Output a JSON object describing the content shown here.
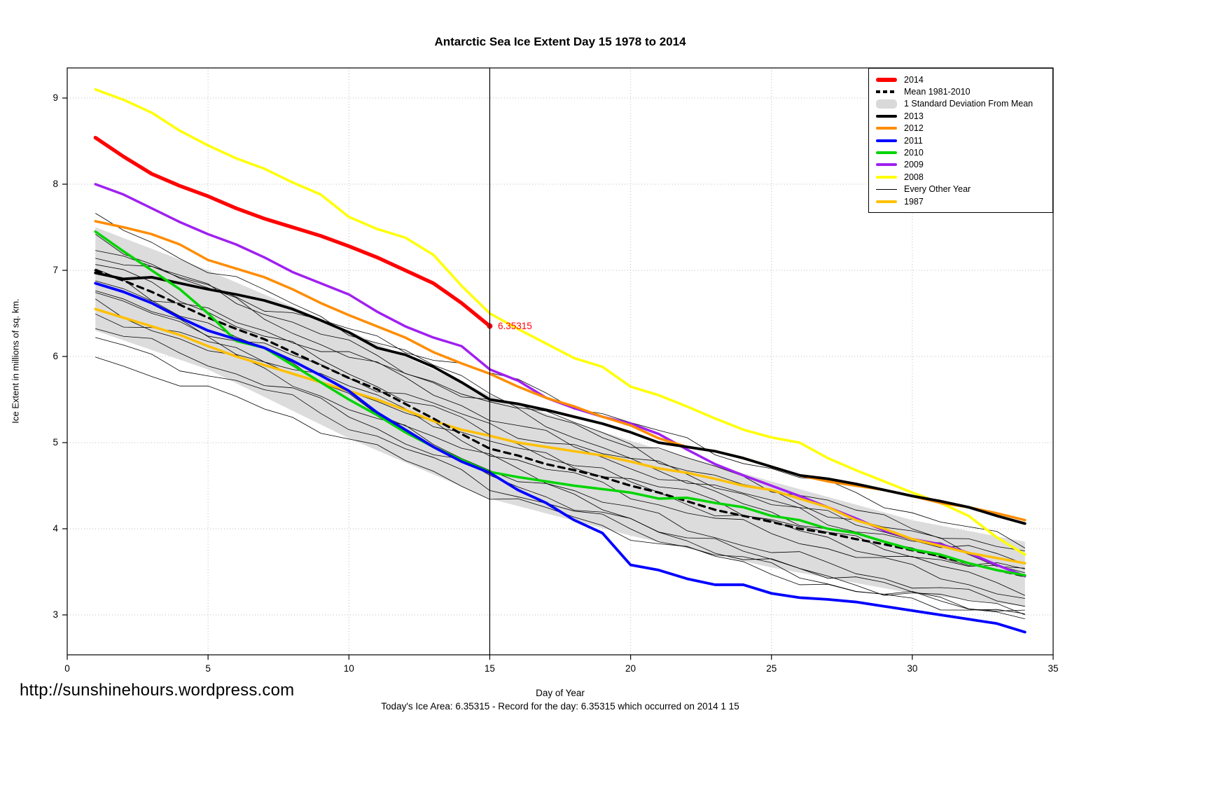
{
  "page": {
    "title": "Antarctic Sea Ice Extent Day 15 1978 to 2014",
    "y_axis_label": "Ice Extent in millions of sq. km.",
    "x_axis_label": "Day of Year",
    "url_text": "http://sunshinehours.wordpress.com",
    "footer_note": "Today's Ice Area: 6.35315  - Record for the day: 6.35315 which occurred on 2014 1 15",
    "annotation": "6.35315"
  },
  "legend": {
    "items": [
      {
        "label": "2014",
        "color": "#FF0000",
        "style": "thick"
      },
      {
        "label": "Mean 1981-2010",
        "color": "#000000",
        "style": "dashed"
      },
      {
        "label": "1 Standard Deviation From Mean",
        "color": "#D9D9D9",
        "style": "band"
      },
      {
        "label": "2013",
        "color": "#000000",
        "style": "line"
      },
      {
        "label": "2012",
        "color": "#FF8C00",
        "style": "line"
      },
      {
        "label": "2011",
        "color": "#0000FF",
        "style": "line"
      },
      {
        "label": "2010",
        "color": "#00D400",
        "style": "line"
      },
      {
        "label": "2009",
        "color": "#A020F0",
        "style": "line"
      },
      {
        "label": "2008",
        "color": "#FFFF00",
        "style": "line"
      },
      {
        "label": "Every Other Year",
        "color": "#000000",
        "style": "thin"
      },
      {
        "label": "1987",
        "color": "#FFC000",
        "style": "line"
      }
    ]
  },
  "chart_data": {
    "type": "line",
    "title": "Antarctic Sea Ice Extent Day 15 1978 to 2014",
    "xlabel": "Day of Year",
    "ylabel": "Ice Extent in millions of sq. km.",
    "xlim": [
      0,
      35
    ],
    "ylim": [
      2.6,
      9.4
    ],
    "x_ticks": [
      0,
      5,
      10,
      15,
      20,
      25,
      30,
      35
    ],
    "y_ticks": [
      3,
      4,
      5,
      6,
      7,
      8,
      9
    ],
    "grid": true,
    "legend_position": "top-right",
    "vline_x": 15,
    "annotation": {
      "x": 15,
      "y": 6.35315,
      "text": "6.35315",
      "color": "#FF0000"
    },
    "band": {
      "name": "1 Standard Deviation From Mean",
      "color": "#DCDCDC",
      "x": [
        1,
        5,
        10,
        15,
        20,
        25,
        30,
        34
      ],
      "upper": [
        7.5,
        7.0,
        6.3,
        5.55,
        5.02,
        4.55,
        4.1,
        3.85
      ],
      "lower": [
        6.3,
        5.85,
        5.05,
        4.35,
        3.92,
        3.55,
        3.25,
        3.1
      ]
    },
    "series": [
      {
        "name": "2008",
        "color": "#FFFF00",
        "width": 3.5,
        "dash": null,
        "start_day": 1,
        "values": [
          9.1,
          8.98,
          8.83,
          8.62,
          8.45,
          8.3,
          8.18,
          8.02,
          7.88,
          7.62,
          7.48,
          7.38,
          7.18,
          6.82,
          6.5,
          6.32,
          6.15,
          5.98,
          5.88,
          5.65,
          5.55,
          5.42,
          5.28,
          5.15,
          5.06,
          5.0,
          4.82,
          4.68,
          4.55,
          4.42,
          4.3,
          4.15,
          3.9,
          3.7
        ]
      },
      {
        "name": "2009",
        "color": "#A020F0",
        "width": 3.5,
        "dash": null,
        "start_day": 1,
        "values": [
          8.0,
          7.88,
          7.72,
          7.56,
          7.42,
          7.3,
          7.15,
          6.98,
          6.85,
          6.72,
          6.52,
          6.35,
          6.22,
          6.12,
          5.85,
          5.72,
          5.52,
          5.4,
          5.3,
          5.22,
          5.1,
          4.92,
          4.75,
          4.62,
          4.5,
          4.38,
          4.25,
          4.12,
          3.98,
          3.88,
          3.82,
          3.72,
          3.58,
          3.45
        ]
      },
      {
        "name": "2012",
        "color": "#FF8C00",
        "width": 3.5,
        "dash": null,
        "start_day": 1,
        "values": [
          7.57,
          7.5,
          7.42,
          7.3,
          7.12,
          7.02,
          6.92,
          6.78,
          6.62,
          6.48,
          6.35,
          6.22,
          6.05,
          5.92,
          5.8,
          5.65,
          5.52,
          5.42,
          5.3,
          5.2,
          5.05,
          4.95,
          4.9,
          4.82,
          4.72,
          4.62,
          4.55,
          4.5,
          4.45,
          4.38,
          4.3,
          4.25,
          4.18,
          4.1
        ]
      },
      {
        "name": "1987",
        "color": "#FFC000",
        "width": 3.5,
        "dash": null,
        "start_day": 1,
        "values": [
          6.55,
          6.45,
          6.35,
          6.25,
          6.12,
          6.0,
          5.9,
          5.8,
          5.7,
          5.6,
          5.5,
          5.38,
          5.25,
          5.15,
          5.08,
          5.0,
          4.95,
          4.9,
          4.85,
          4.78,
          4.7,
          4.65,
          4.58,
          4.5,
          4.45,
          4.35,
          4.25,
          4.1,
          4.0,
          3.88,
          3.8,
          3.72,
          3.66,
          3.6
        ]
      },
      {
        "name": "Mean 1981-2010",
        "color": "#000000",
        "width": 3.2,
        "dash": "9 7",
        "start_day": 1,
        "values": [
          7.0,
          6.88,
          6.75,
          6.6,
          6.45,
          6.32,
          6.2,
          6.05,
          5.9,
          5.75,
          5.62,
          5.45,
          5.28,
          5.1,
          4.93,
          4.85,
          4.75,
          4.68,
          4.6,
          4.5,
          4.42,
          4.32,
          4.22,
          4.15,
          4.08,
          4.0,
          3.95,
          3.88,
          3.82,
          3.75,
          3.68,
          3.6,
          3.52,
          3.45
        ]
      },
      {
        "name": "2013",
        "color": "#000000",
        "width": 3.8,
        "dash": null,
        "start_day": 1,
        "values": [
          6.97,
          6.9,
          6.92,
          6.85,
          6.78,
          6.72,
          6.65,
          6.55,
          6.42,
          6.28,
          6.1,
          6.02,
          5.88,
          5.7,
          5.5,
          5.45,
          5.38,
          5.3,
          5.22,
          5.12,
          5.0,
          4.95,
          4.9,
          4.82,
          4.72,
          4.62,
          4.58,
          4.52,
          4.45,
          4.38,
          4.32,
          4.25,
          4.15,
          4.06
        ]
      },
      {
        "name": "2010",
        "color": "#00D400",
        "width": 3.5,
        "dash": null,
        "start_day": 1,
        "values": [
          7.45,
          7.22,
          7.0,
          6.78,
          6.5,
          6.18,
          6.1,
          5.9,
          5.7,
          5.5,
          5.32,
          5.12,
          4.95,
          4.8,
          4.66,
          4.6,
          4.55,
          4.5,
          4.46,
          4.42,
          4.35,
          4.36,
          4.3,
          4.25,
          4.15,
          4.1,
          4.0,
          3.95,
          3.85,
          3.76,
          3.7,
          3.6,
          3.52,
          3.46
        ]
      },
      {
        "name": "2011",
        "color": "#0000FF",
        "width": 3.8,
        "dash": null,
        "start_day": 1,
        "values": [
          6.85,
          6.75,
          6.62,
          6.45,
          6.3,
          6.2,
          6.1,
          5.95,
          5.78,
          5.6,
          5.35,
          5.15,
          4.95,
          4.78,
          4.65,
          4.45,
          4.3,
          4.1,
          3.95,
          3.58,
          3.52,
          3.42,
          3.35,
          3.35,
          3.25,
          3.2,
          3.18,
          3.15,
          3.1,
          3.05,
          3.0,
          2.95,
          2.9,
          2.8
        ]
      },
      {
        "name": "2014",
        "color": "#FF0000",
        "width": 5.2,
        "dash": null,
        "start_day": 1,
        "endpoint_dot": true,
        "values": [
          8.54,
          8.32,
          8.12,
          7.98,
          7.86,
          7.72,
          7.6,
          7.5,
          7.4,
          7.28,
          7.15,
          7.0,
          6.85,
          6.62,
          6.35315
        ]
      }
    ],
    "background_series": {
      "name": "Every Other Year",
      "color": "#000000",
      "width": 0.8,
      "control_x": [
        1,
        8,
        15,
        22,
        28,
        34
      ],
      "lines": [
        [
          7.6,
          6.6,
          5.6,
          4.7,
          4.1,
          3.6
        ],
        [
          7.4,
          6.3,
          5.3,
          4.5,
          3.9,
          3.5
        ],
        [
          7.2,
          6.5,
          5.8,
          5.0,
          4.4,
          3.8
        ],
        [
          7.1,
          6.1,
          5.1,
          4.3,
          3.8,
          3.3
        ],
        [
          7.0,
          5.9,
          4.9,
          4.2,
          3.7,
          3.2
        ],
        [
          6.9,
          6.2,
          5.5,
          4.8,
          4.2,
          3.7
        ],
        [
          6.8,
          5.8,
          4.8,
          4.0,
          3.5,
          3.1
        ],
        [
          6.7,
          6.0,
          5.2,
          4.6,
          4.0,
          3.55
        ],
        [
          6.6,
          5.7,
          4.7,
          3.9,
          3.4,
          3.0
        ],
        [
          6.5,
          5.9,
          5.0,
          4.4,
          3.85,
          3.45
        ],
        [
          6.35,
          5.6,
          4.6,
          3.85,
          3.35,
          3.05
        ],
        [
          6.2,
          5.5,
          4.5,
          3.8,
          3.3,
          3.0
        ],
        [
          6.0,
          5.3,
          4.4,
          3.75,
          3.25,
          3.0
        ],
        [
          7.3,
          6.4,
          5.45,
          4.6,
          4.05,
          3.6
        ]
      ]
    }
  }
}
